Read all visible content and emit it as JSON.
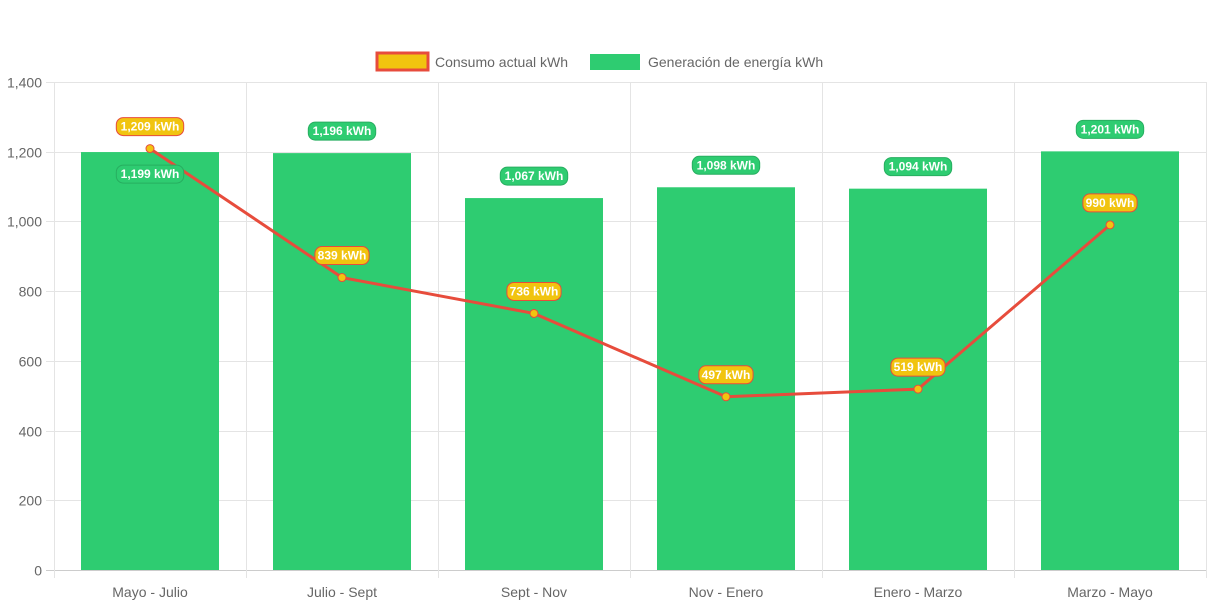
{
  "chart_data": {
    "type": "bar",
    "categories": [
      "Mayo - Julio",
      "Julio - Sept",
      "Sept - Nov",
      "Nov - Enero",
      "Enero - Marzo",
      "Marzo - Mayo"
    ],
    "series": [
      {
        "name": "Consumo actual kWh",
        "type": "line",
        "values": [
          1209,
          839,
          736,
          497,
          519,
          990
        ],
        "labels": [
          "1,209 kWh",
          "839 kWh",
          "736 kWh",
          "497 kWh",
          "519 kWh",
          "990 kWh"
        ],
        "color": "#e74c3c",
        "fill": "#f1c40f"
      },
      {
        "name": "Generación de energía kWh",
        "type": "bar",
        "values": [
          1199,
          1196,
          1067,
          1098,
          1094,
          1201
        ],
        "labels": [
          "1,199 kWh",
          "1,196 kWh",
          "1,067 kWh",
          "1,098 kWh",
          "1,094 kWh",
          "1,201 kWh"
        ],
        "color": "#2ecc71"
      }
    ],
    "ylim": [
      0,
      1400
    ],
    "yticks": [
      0,
      200,
      400,
      600,
      800,
      1000,
      1200,
      1400
    ],
    "ytick_labels": [
      "0",
      "200",
      "400",
      "600",
      "800",
      "1,000",
      "1,200",
      "1,400"
    ],
    "grid": true,
    "legend": "top-center",
    "title": "",
    "xlabel": "",
    "ylabel": ""
  }
}
